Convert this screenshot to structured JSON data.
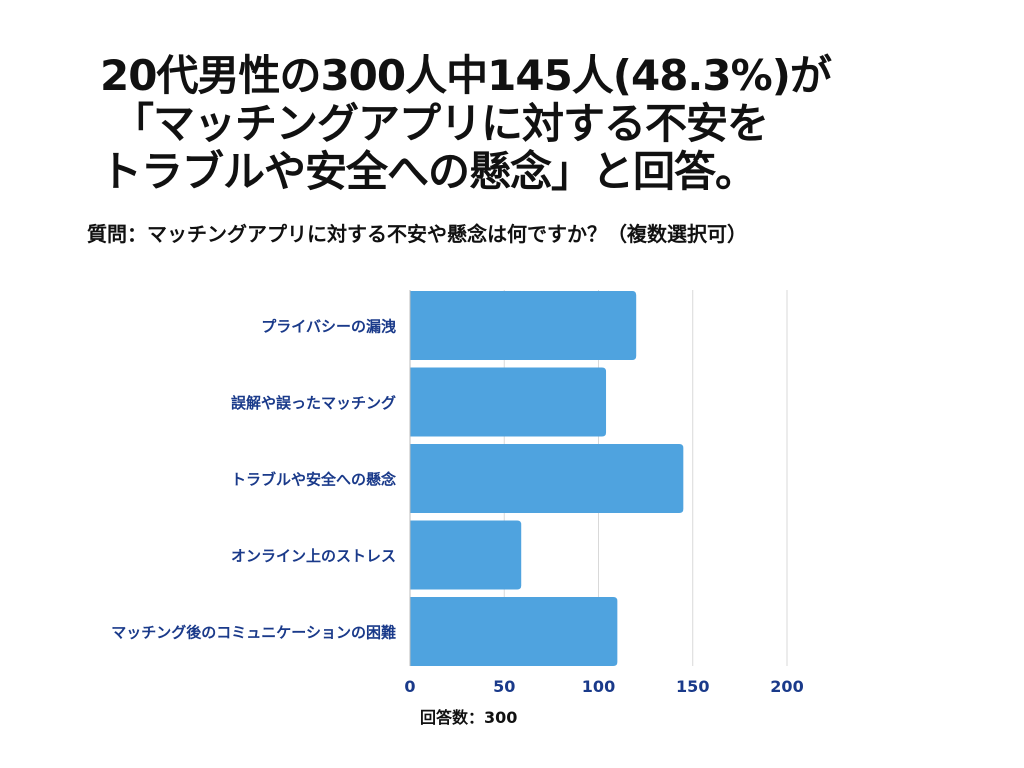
{
  "headline": {
    "line1": "20代男性の300人中145人(48.3%)が",
    "line2": "「マッチングアプリに対する不安を",
    "line3": "トラブルや安全への懸念」と回答。"
  },
  "question": "質問：マッチングアプリに対する不安や懸念は何ですか？（複数選択可）",
  "footnote": "回答数：300",
  "colors": {
    "bar": "#4fa3df",
    "label": "#1a3a8a",
    "grid": "#d9d9d9"
  },
  "chart_data": {
    "type": "bar",
    "orientation": "horizontal",
    "categories": [
      "プライバシーの漏洩",
      "誤解や誤ったマッチング",
      "トラブルや安全への懸念",
      "オンライン上のストレス",
      "マッチング後のコミュニケーションの困難"
    ],
    "values": [
      120,
      104,
      145,
      59,
      110
    ],
    "xlim": [
      0,
      200
    ],
    "xticks": [
      0,
      50,
      100,
      150,
      200
    ],
    "grid": true
  }
}
